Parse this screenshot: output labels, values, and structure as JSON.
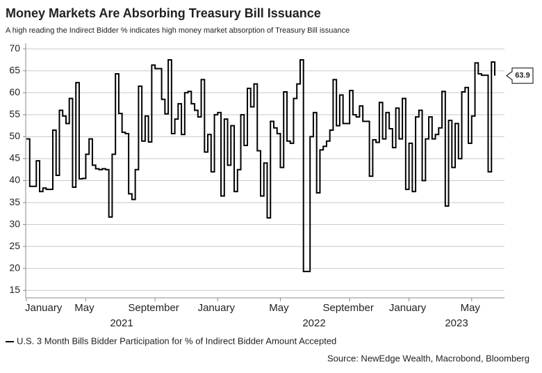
{
  "chart_data": {
    "type": "line",
    "line_style": "step",
    "title": "Money Markets Are Absorbing Treasury Bill Issuance",
    "subtitle": "A high reading the Indirect Bidder % indicates high money market absorption of Treasury Bill issuance",
    "source": "Source: NewEdge Wealth, Macrobond, Bloomberg",
    "year_labels": [
      "2021",
      "2022",
      "2023"
    ],
    "categories": [
      "January",
      null,
      null,
      null,
      null,
      null,
      null,
      null,
      null,
      null,
      null,
      null,
      null,
      null,
      null,
      null,
      null,
      null,
      "May",
      null,
      null,
      null,
      null,
      null,
      null,
      null,
      null,
      null,
      null,
      null,
      null,
      null,
      null,
      null,
      null,
      null,
      null,
      null,
      null,
      "September",
      null,
      null,
      null,
      null,
      null,
      null,
      null,
      null,
      null,
      null,
      null,
      null,
      null,
      null,
      null,
      null,
      null,
      null,
      "January",
      null,
      null,
      null,
      null,
      null,
      null,
      null,
      null,
      null,
      null,
      null,
      null,
      null,
      null,
      null,
      null,
      null,
      null,
      "May",
      null,
      null,
      null,
      null,
      null,
      null,
      null,
      null,
      null,
      null,
      null,
      null,
      null,
      null,
      null,
      null,
      null,
      null,
      null,
      null,
      "September",
      null,
      null,
      null,
      null,
      null,
      null,
      null,
      null,
      null,
      null,
      null,
      null,
      null,
      null,
      null,
      null,
      null,
      "January",
      null,
      null,
      null,
      null,
      null,
      null,
      null,
      null,
      null,
      null,
      null,
      null,
      null,
      null,
      null,
      null,
      null,
      null,
      "May",
      null,
      null,
      null,
      null,
      null,
      null,
      null
    ],
    "series": [
      {
        "name": "U.S. 3 Month Bills Bidder Participation for % of Indirect Bidder Amount Accepted",
        "color": "#000000",
        "values": [
          49.5,
          38.7,
          38.7,
          44.5,
          37.5,
          38.3,
          38,
          38,
          51.5,
          41.2,
          56,
          54.7,
          53,
          58.7,
          38.5,
          62.3,
          40.4,
          40.5,
          46,
          49.5,
          43.5,
          42.7,
          42.5,
          42.7,
          42.5,
          31.7,
          46,
          64.3,
          55.3,
          51,
          50.7,
          37,
          35.7,
          42.5,
          61.5,
          49,
          54.7,
          48.8,
          66.3,
          65.5,
          65.5,
          58.5,
          55.2,
          67.5,
          50.7,
          54,
          57.5,
          50.5,
          60,
          60.3,
          57.5,
          56,
          54.5,
          63,
          46.5,
          50.5,
          42,
          55,
          55.5,
          36.5,
          54,
          43.5,
          52.5,
          37.5,
          42.5,
          55,
          48,
          61,
          56.8,
          62,
          46.8,
          36.5,
          44,
          31.5,
          53.5,
          52,
          50.7,
          43,
          60.2,
          49,
          48.5,
          58.7,
          62,
          67.5,
          19.3,
          19.3,
          50,
          55.5,
          37.2,
          47,
          47.8,
          49,
          51.5,
          63,
          52.5,
          59.5,
          53,
          53,
          60.5,
          55,
          54.5,
          57,
          53.5,
          53.5,
          41,
          49.3,
          48.7,
          57.8,
          49.5,
          55.5,
          51.8,
          47.5,
          56.5,
          49.5,
          58.7,
          38,
          48.5,
          37.5,
          54.5,
          56,
          40,
          49.5,
          54.5,
          49.5,
          50.5,
          52,
          60.3,
          34.2,
          53.7,
          43,
          53,
          45,
          60.2,
          61.2,
          48.5,
          54.7,
          66.8,
          64.3,
          64,
          64,
          42,
          67,
          63.9
        ]
      }
    ],
    "ylim": [
      13.3,
      71.3
    ],
    "yticks": [
      15,
      20,
      25,
      30,
      35,
      40,
      45,
      50,
      55,
      60,
      65,
      70
    ],
    "grid": true
  }
}
